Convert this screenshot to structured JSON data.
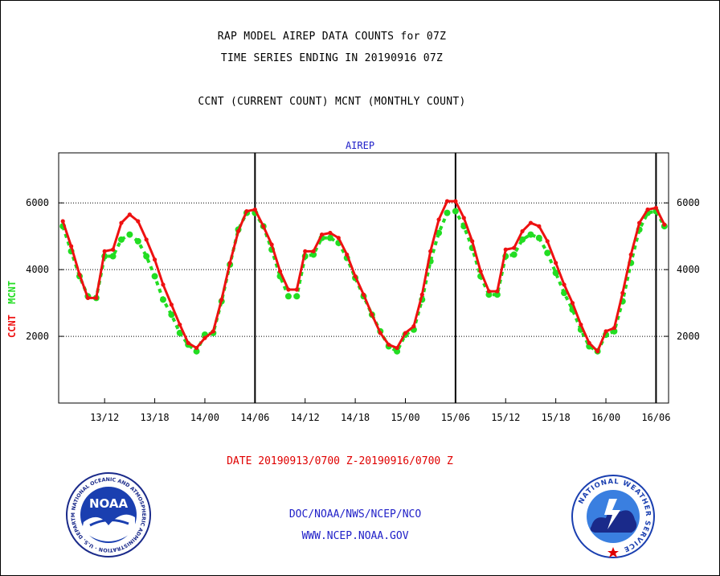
{
  "header": {
    "line1": "RAP MODEL AIREP DATA COUNTS for 07Z",
    "line2": "TIME SERIES ENDING IN 20190916 07Z",
    "line3": "CCNT (CURRENT COUNT) MCNT (MONTHLY COUNT)"
  },
  "footer": {
    "date_range": "DATE 20190913/0700 Z-20190916/0700 Z",
    "agency_path": "DOC/NOAA/NWS/NCEP/NCO",
    "website": "WWW.NCEP.NOAA.GOV"
  },
  "logos": {
    "noaa": {
      "center_text": "NOAA",
      "ring_text": "NATIONAL OCEANIC AND ATMOSPHERIC ADMINISTRATION · U.S. DEPARTMENT OF COMMERCE"
    },
    "nws": {
      "ring_text": "NATIONAL WEATHER SERVICE"
    }
  },
  "colors": {
    "ccnt": "#ee1111",
    "mcnt": "#22dd22",
    "title_blue": "#2020c8"
  },
  "chart_data": {
    "type": "line",
    "title": "AIREP",
    "ylabel_parts": [
      "CCNT",
      "MCNT"
    ],
    "ylim": [
      0,
      7500
    ],
    "yticks": [
      2000,
      4000,
      6000
    ],
    "ytick_labels": [
      "2000",
      "4000",
      "6000"
    ],
    "xlim": [
      -0.5,
      72.5
    ],
    "xticks": [
      5,
      11,
      17,
      23,
      29,
      35,
      41,
      47,
      53,
      59,
      65,
      71
    ],
    "xtick_labels": [
      "13/12",
      "13/18",
      "14/00",
      "14/06",
      "14/12",
      "14/18",
      "15/00",
      "15/06",
      "15/12",
      "15/18",
      "16/00",
      "16/06"
    ],
    "vlines": [
      23,
      47,
      71
    ],
    "grid": true,
    "x": [
      0,
      1,
      2,
      3,
      4,
      5,
      6,
      7,
      8,
      9,
      10,
      11,
      12,
      13,
      14,
      15,
      16,
      17,
      18,
      19,
      20,
      21,
      22,
      23,
      24,
      25,
      26,
      27,
      28,
      29,
      30,
      31,
      32,
      33,
      34,
      35,
      36,
      37,
      38,
      39,
      40,
      41,
      42,
      43,
      44,
      45,
      46,
      47,
      48,
      49,
      50,
      51,
      52,
      53,
      54,
      55,
      56,
      57,
      58,
      59,
      60,
      61,
      62,
      63,
      64,
      65,
      66,
      67,
      68,
      69,
      70,
      71,
      72
    ],
    "series": [
      {
        "name": "CCNT",
        "color": "#ee1111",
        "values": [
          5450,
          4700,
          3850,
          3150,
          3150,
          4550,
          4600,
          5400,
          5650,
          5450,
          4900,
          4300,
          3550,
          2950,
          2350,
          1800,
          1650,
          1950,
          2150,
          3100,
          4200,
          5150,
          5750,
          5800,
          5300,
          4750,
          3950,
          3400,
          3400,
          4550,
          4550,
          5050,
          5100,
          4950,
          4450,
          3800,
          3250,
          2650,
          2100,
          1750,
          1650,
          2100,
          2300,
          3250,
          4550,
          5500,
          6050,
          6050,
          5550,
          4850,
          3950,
          3350,
          3350,
          4600,
          4650,
          5150,
          5400,
          5300,
          4850,
          4200,
          3550,
          3000,
          2350,
          1800,
          1550,
          2150,
          2250,
          3300,
          4450,
          5400,
          5800,
          5850,
          5350
        ]
      },
      {
        "name": "MCNT",
        "color": "#22dd22",
        "values": [
          5300,
          4550,
          3800,
          3200,
          3150,
          4400,
          4400,
          4900,
          5050,
          4850,
          4400,
          3800,
          3100,
          2650,
          2100,
          1750,
          1550,
          2050,
          2100,
          3050,
          4150,
          5200,
          5700,
          5700,
          5300,
          4600,
          3800,
          3200,
          3200,
          4400,
          4450,
          4950,
          4950,
          4800,
          4350,
          3750,
          3200,
          2650,
          2150,
          1700,
          1550,
          2050,
          2200,
          3100,
          4250,
          5100,
          5700,
          5750,
          5300,
          4650,
          3800,
          3250,
          3250,
          4400,
          4450,
          4900,
          5050,
          4950,
          4500,
          3900,
          3300,
          2800,
          2200,
          1700,
          1550,
          2050,
          2150,
          3050,
          4200,
          5200,
          5700,
          5750,
          5300
        ]
      }
    ]
  }
}
